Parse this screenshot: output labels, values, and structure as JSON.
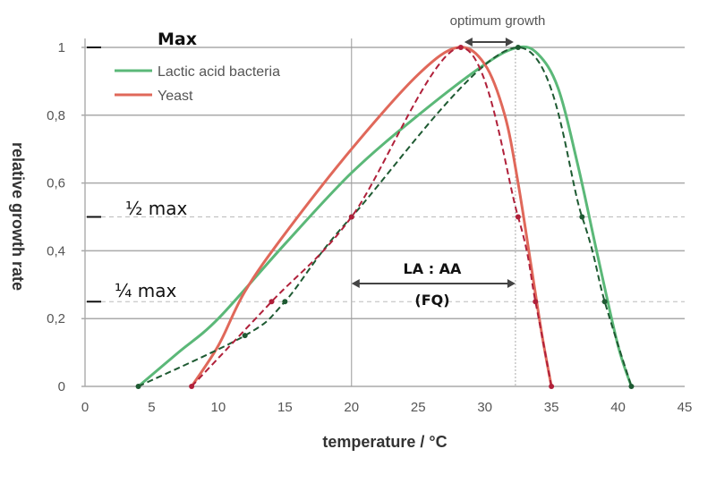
{
  "chart_data": {
    "type": "line",
    "title": "",
    "xlabel": "temperature / °C",
    "ylabel": "relative growth rate",
    "xlim": [
      0,
      45
    ],
    "ylim": [
      0,
      1
    ],
    "xticks": [
      "0",
      "5",
      "10",
      "15",
      "20",
      "25",
      "30",
      "35",
      "40",
      "45"
    ],
    "yticks": [
      "0",
      "0,2",
      "0,4",
      "0,6",
      "0,8",
      "1"
    ],
    "grid": "horizontal",
    "legend_position": "top-left",
    "series": [
      {
        "name": "Lactic acid bacteria",
        "color": "#5bb878",
        "style": "solid",
        "x": [
          4,
          7,
          10,
          15,
          20,
          25,
          30,
          32.5,
          34,
          35.5,
          37,
          38.5,
          40,
          41
        ],
        "y": [
          0,
          0.1,
          0.2,
          0.42,
          0.63,
          0.8,
          0.95,
          1.0,
          0.98,
          0.88,
          0.65,
          0.38,
          0.12,
          0
        ]
      },
      {
        "name": "Yeast",
        "color": "#e0685a",
        "style": "solid",
        "x": [
          8,
          10,
          12,
          15,
          20,
          25,
          28,
          30,
          31.5,
          32.5,
          33.5,
          34.3,
          35
        ],
        "y": [
          0,
          0.12,
          0.28,
          0.45,
          0.7,
          0.92,
          1.0,
          0.95,
          0.8,
          0.6,
          0.35,
          0.15,
          0
        ]
      },
      {
        "color": "#1e5a32",
        "style": "dashed",
        "markers": true,
        "x": [
          4,
          12,
          15,
          20,
          32.5,
          37.3,
          39,
          41
        ],
        "y": [
          0,
          0.15,
          0.25,
          0.5,
          1.0,
          0.5,
          0.25,
          0
        ]
      },
      {
        "color": "#b0203a",
        "style": "dashed",
        "markers": true,
        "x": [
          8,
          14,
          20,
          28.2,
          32.5,
          33.8,
          35
        ],
        "y": [
          0,
          0.25,
          0.5,
          1.0,
          0.5,
          0.25,
          0
        ]
      }
    ],
    "annotations": {
      "max": "Max",
      "half_max": "½ max",
      "quarter_max": "¼ max",
      "optimum": "optimum growth",
      "ratio_line1": "LA : AA",
      "ratio_line2": "(FQ)"
    }
  }
}
